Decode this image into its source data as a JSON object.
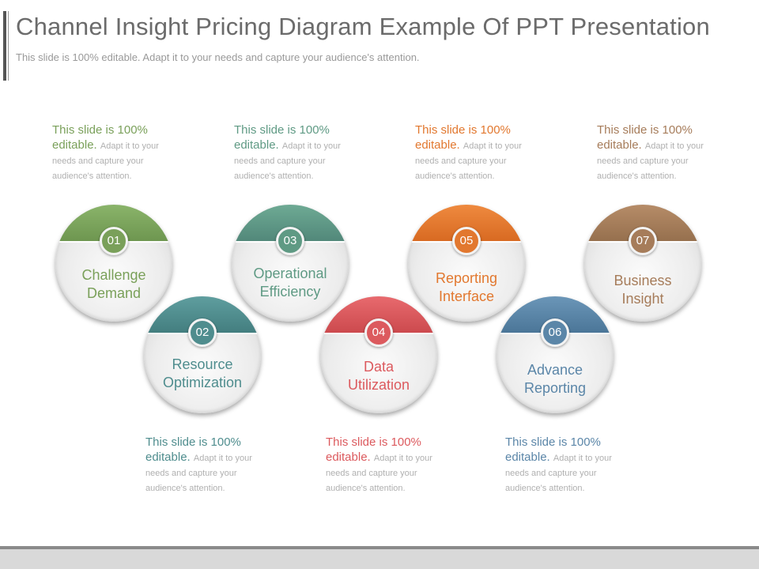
{
  "slide": {
    "title": "Channel Insight Pricing Diagram Example Of PPT Presentation",
    "subtitle": "This slide is 100% editable. Adapt it to your needs and capture your audience's attention."
  },
  "colors": {
    "01": "#7aa05a",
    "02": "#4f8d8e",
    "03": "#5f9a84",
    "04": "#dc5a5e",
    "05": "#e2782f",
    "06": "#5b86a8",
    "07": "#a67c5a"
  },
  "nodes": [
    {
      "number": "01",
      "label_line1": "Challenge",
      "label_line2": "Demand"
    },
    {
      "number": "02",
      "label_line1": "Resource",
      "label_line2": "Optimization"
    },
    {
      "number": "03",
      "label_line1": "Operational",
      "label_line2": "Efficiency"
    },
    {
      "number": "04",
      "label_line1": "Data",
      "label_line2": "Utilization"
    },
    {
      "number": "05",
      "label_line1": "Reporting",
      "label_line2": "Interface"
    },
    {
      "number": "06",
      "label_line1": "Advance",
      "label_line2": "Reporting"
    },
    {
      "number": "07",
      "label_line1": "Business",
      "label_line2": "Insight"
    }
  ],
  "notes": [
    {
      "for": "01",
      "head1": "This slide is 100%",
      "head2": "editable.",
      "body": "Adapt it to your needs and capture your audience's attention."
    },
    {
      "for": "03",
      "head1": "This slide is 100%",
      "head2": "editable.",
      "body": "Adapt it to your needs and capture your audience's attention."
    },
    {
      "for": "05",
      "head1": "This slide is 100%",
      "head2": "editable.",
      "body": "Adapt it to your needs and capture your audience's attention."
    },
    {
      "for": "07",
      "head1": "This slide is 100%",
      "head2": "editable.",
      "body": "Adapt it to your needs and capture your audience's attention."
    },
    {
      "for": "02",
      "head1": "This slide is 100%",
      "head2": "editable.",
      "body": "Adapt it to your needs and capture your audience's attention."
    },
    {
      "for": "04",
      "head1": "This slide is 100%",
      "head2": "editable.",
      "body": "Adapt it to your needs and capture your audience's attention."
    },
    {
      "for": "06",
      "head1": "This slide is 100%",
      "head2": "editable.",
      "body": "Adapt it to your needs and capture your audience's attention."
    }
  ]
}
